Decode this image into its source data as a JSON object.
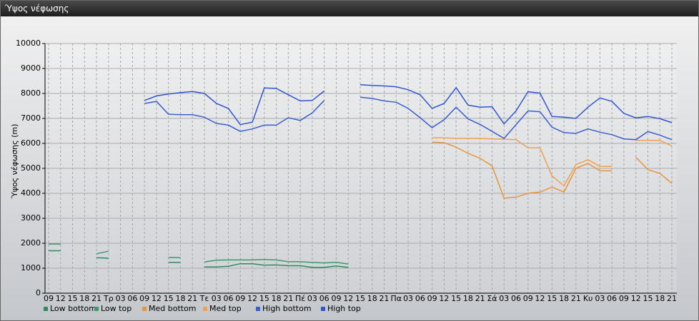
{
  "chart_data": {
    "type": "line",
    "title": "Ύψος νέφωσης",
    "y_label": "Ύψος νέφωσης (m)",
    "categories": [
      "09",
      "12",
      "15",
      "18",
      "21",
      "Τρ",
      "03",
      "06",
      "09",
      "12",
      "15",
      "18",
      "21",
      "Τε",
      "03",
      "06",
      "09",
      "12",
      "15",
      "18",
      "21",
      "Πέ",
      "03",
      "06",
      "09",
      "12",
      "15",
      "18",
      "21",
      "Πα",
      "03",
      "06",
      "09",
      "12",
      "15",
      "18",
      "21",
      "Σά",
      "03",
      "06",
      "09",
      "12",
      "15",
      "18",
      "21",
      "Κυ",
      "03",
      "06",
      "09",
      "12",
      "15",
      "18",
      "21"
    ],
    "ylim": [
      0,
      10000
    ],
    "yticks": [
      0,
      1000,
      2000,
      3000,
      4000,
      5000,
      6000,
      7000,
      8000,
      9000,
      10000
    ],
    "grid": true,
    "series": [
      {
        "name": "Low bottom",
        "color": "#2e8b5a",
        "values": [
          1700,
          1700,
          null,
          null,
          1420,
          1400,
          null,
          null,
          null,
          null,
          1230,
          1230,
          null,
          1050,
          1050,
          1080,
          1180,
          1180,
          1120,
          1130,
          1100,
          1100,
          1030,
          1030,
          1090,
          1030,
          null,
          null,
          null,
          null,
          null,
          null,
          null,
          null,
          null,
          null,
          null,
          null,
          null,
          null,
          null,
          null,
          null,
          null,
          null,
          null,
          null,
          null,
          null,
          null,
          null,
          null,
          null
        ]
      },
      {
        "name": "Low top",
        "color": "#3a9a6c",
        "values": [
          1970,
          1970,
          null,
          null,
          1580,
          1680,
          null,
          null,
          null,
          null,
          1430,
          1420,
          null,
          1250,
          1320,
          1330,
          1330,
          1330,
          1350,
          1330,
          1260,
          1260,
          1230,
          1210,
          1240,
          1170,
          null,
          null,
          null,
          null,
          null,
          null,
          null,
          null,
          null,
          null,
          null,
          null,
          null,
          null,
          null,
          null,
          null,
          null,
          null,
          null,
          null,
          null,
          null,
          null,
          null,
          null,
          null
        ]
      },
      {
        "name": "Med bottom",
        "color": "#e8953c",
        "values": [
          null,
          null,
          null,
          null,
          null,
          null,
          null,
          null,
          null,
          null,
          null,
          null,
          null,
          null,
          null,
          null,
          null,
          null,
          null,
          null,
          null,
          null,
          null,
          null,
          null,
          null,
          null,
          null,
          null,
          null,
          null,
          null,
          6050,
          6030,
          5850,
          5600,
          5400,
          5100,
          3800,
          3850,
          4000,
          4050,
          4250,
          4050,
          5000,
          5200,
          4900,
          4900,
          null,
          5450,
          4950,
          4800,
          4400
        ]
      },
      {
        "name": "Med top",
        "color": "#f0a050",
        "values": [
          null,
          null,
          null,
          null,
          null,
          null,
          null,
          null,
          null,
          null,
          null,
          null,
          null,
          null,
          null,
          null,
          null,
          null,
          null,
          null,
          null,
          null,
          null,
          null,
          null,
          null,
          null,
          null,
          null,
          null,
          null,
          null,
          6220,
          6220,
          6200,
          6200,
          6200,
          6180,
          6170,
          6150,
          5820,
          5820,
          4700,
          4300,
          5150,
          5350,
          5080,
          5080,
          null,
          6120,
          6120,
          6120,
          5900
        ]
      },
      {
        "name": "High bottom",
        "color": "#3a5fcd",
        "values": [
          null,
          null,
          null,
          null,
          null,
          null,
          null,
          null,
          7600,
          7680,
          7170,
          7150,
          7150,
          7050,
          6800,
          6730,
          6480,
          6580,
          6730,
          6730,
          7030,
          6920,
          7220,
          7720,
          null,
          null,
          7850,
          7800,
          7700,
          7650,
          7400,
          7030,
          6630,
          6950,
          7450,
          6980,
          6760,
          6480,
          6200,
          6750,
          7300,
          7270,
          6650,
          6430,
          6400,
          6580,
          6450,
          6350,
          6180,
          6150,
          6470,
          6330,
          6150
        ]
      },
      {
        "name": "High top",
        "color": "#2f55d0",
        "values": [
          null,
          null,
          null,
          null,
          null,
          null,
          null,
          null,
          7720,
          7900,
          7980,
          8030,
          8080,
          8000,
          7600,
          7400,
          6750,
          6850,
          8220,
          8200,
          7950,
          7700,
          7720,
          8100,
          null,
          null,
          8350,
          8320,
          8300,
          8270,
          8150,
          7950,
          7400,
          7600,
          8230,
          7530,
          7450,
          7470,
          6780,
          7300,
          8070,
          8010,
          7080,
          7050,
          7000,
          7450,
          7820,
          7680,
          7200,
          7020,
          7080,
          6990,
          6830
        ]
      }
    ]
  }
}
